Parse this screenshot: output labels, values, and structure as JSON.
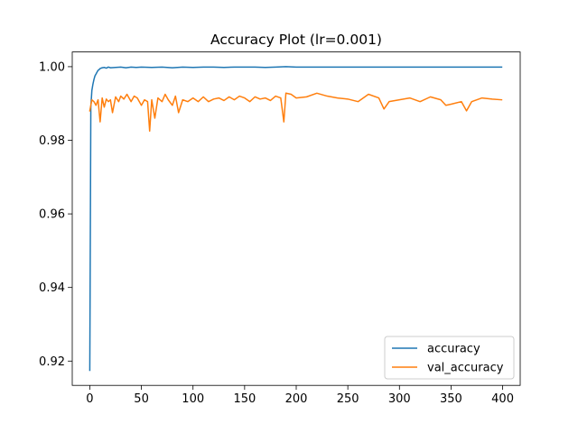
{
  "chart_data": {
    "type": "line",
    "title": "Accuracy Plot (lr=0.001)",
    "xlabel": "",
    "ylabel": "",
    "xlim": [
      -17,
      417
    ],
    "ylim": [
      0.9134,
      1.004
    ],
    "xticks": [
      0,
      50,
      100,
      150,
      200,
      250,
      300,
      350,
      400
    ],
    "yticks": [
      0.92,
      0.94,
      0.96,
      0.98,
      1.0
    ],
    "ytick_labels": [
      "0.92",
      "0.94",
      "0.96",
      "0.98",
      "1.00"
    ],
    "grid": false,
    "legend_position": "lower-right",
    "series": [
      {
        "name": "accuracy",
        "color": "#1f77b4",
        "x": [
          0,
          1,
          2,
          3,
          4,
          5,
          6,
          7,
          8,
          9,
          10,
          12,
          14,
          16,
          18,
          20,
          25,
          30,
          35,
          40,
          45,
          50,
          60,
          70,
          80,
          90,
          100,
          110,
          120,
          130,
          140,
          150,
          160,
          170,
          180,
          190,
          200,
          220,
          240,
          260,
          280,
          300,
          320,
          340,
          360,
          380,
          399
        ],
        "values": [
          0.9175,
          0.989,
          0.9935,
          0.9952,
          0.9965,
          0.9975,
          0.998,
          0.9985,
          0.999,
          0.9992,
          0.9995,
          0.9997,
          0.9998,
          0.9996,
          0.9999,
          0.9997,
          0.9998,
          0.9999,
          0.9997,
          0.9999,
          0.9998,
          0.9999,
          0.9998,
          0.9999,
          0.9997,
          0.9999,
          0.9998,
          0.9999,
          0.9999,
          0.9998,
          0.9999,
          0.9999,
          0.9999,
          0.9998,
          0.9999,
          1.0,
          0.9999,
          0.9999,
          0.9999,
          0.9999,
          0.9999,
          0.9999,
          0.9999,
          0.9999,
          0.9999,
          0.9999,
          0.9999
        ]
      },
      {
        "name": "val_accuracy",
        "color": "#ff7f0e",
        "x": [
          0,
          2,
          4,
          6,
          8,
          10,
          12,
          14,
          16,
          18,
          20,
          22,
          25,
          28,
          30,
          33,
          36,
          40,
          43,
          46,
          50,
          53,
          56,
          58,
          60,
          63,
          66,
          70,
          73,
          76,
          80,
          83,
          86,
          90,
          95,
          100,
          105,
          110,
          115,
          120,
          125,
          130,
          135,
          140,
          145,
          150,
          155,
          160,
          165,
          170,
          175,
          180,
          185,
          188,
          190,
          195,
          200,
          210,
          220,
          230,
          240,
          250,
          260,
          270,
          280,
          285,
          290,
          300,
          310,
          320,
          330,
          340,
          345,
          350,
          360,
          365,
          370,
          380,
          390,
          399
        ],
        "values": [
          0.988,
          0.991,
          0.9905,
          0.9895,
          0.991,
          0.985,
          0.9915,
          0.989,
          0.9912,
          0.9905,
          0.991,
          0.9875,
          0.9918,
          0.9905,
          0.992,
          0.9912,
          0.9925,
          0.9905,
          0.992,
          0.9915,
          0.9895,
          0.991,
          0.9905,
          0.9825,
          0.991,
          0.986,
          0.9915,
          0.9905,
          0.9925,
          0.991,
          0.9895,
          0.992,
          0.9875,
          0.991,
          0.9905,
          0.9915,
          0.9905,
          0.9918,
          0.9905,
          0.9912,
          0.9915,
          0.9908,
          0.9918,
          0.991,
          0.992,
          0.9915,
          0.9905,
          0.9918,
          0.9912,
          0.9915,
          0.9908,
          0.992,
          0.9915,
          0.985,
          0.9928,
          0.9925,
          0.9915,
          0.9918,
          0.9928,
          0.992,
          0.9915,
          0.9912,
          0.9905,
          0.9925,
          0.9915,
          0.9885,
          0.9905,
          0.991,
          0.9915,
          0.9905,
          0.9918,
          0.991,
          0.9895,
          0.9898,
          0.9905,
          0.988,
          0.9905,
          0.9915,
          0.9912,
          0.991
        ]
      }
    ]
  }
}
